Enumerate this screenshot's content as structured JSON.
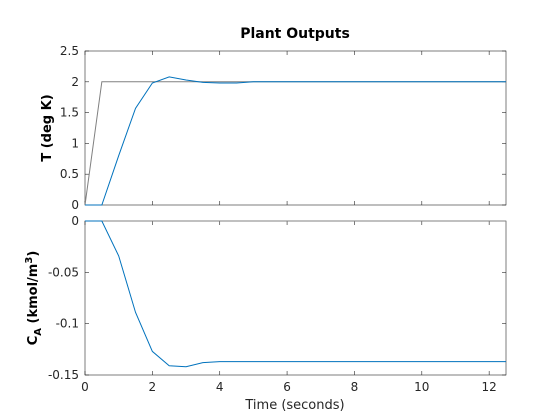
{
  "chart_data": [
    {
      "type": "line",
      "title": "Plant Outputs",
      "ylabel": "T (deg K)",
      "xlabel": "",
      "xlim": [
        0,
        12.5
      ],
      "ylim": [
        0,
        2.5
      ],
      "xticks": [
        "0",
        "2",
        "4",
        "6",
        "8",
        "10",
        "12"
      ],
      "xticks_visible": false,
      "yticks": [
        "0",
        "0.5",
        "1",
        "1.5",
        "2",
        "2.5"
      ],
      "grid": false,
      "series": [
        {
          "color": "#808080",
          "x": [
            0,
            0.5,
            12.5
          ],
          "y": [
            0,
            2,
            2
          ]
        },
        {
          "color": "#0072bd",
          "x": [
            0,
            0.5,
            1.0,
            1.5,
            2.0,
            2.5,
            3.0,
            3.5,
            4.0,
            4.5,
            5.0,
            6.0,
            8.0,
            10.0,
            12.5
          ],
          "y": [
            0,
            0,
            0.8,
            1.57,
            1.98,
            2.08,
            2.03,
            1.99,
            1.98,
            1.98,
            2.0,
            2.0,
            2.0,
            2.0,
            2.0
          ]
        }
      ]
    },
    {
      "type": "line",
      "title": "",
      "ylabel_parts": {
        "main": "C",
        "sub": "A",
        "rest": " (kmol/m",
        "sup": "3",
        "end": ")"
      },
      "xlabel": "Time (seconds)",
      "xlim": [
        0,
        12.5
      ],
      "ylim": [
        -0.15,
        0
      ],
      "xticks": [
        "0",
        "2",
        "4",
        "6",
        "8",
        "10",
        "12"
      ],
      "yticks": [
        "-0.15",
        "-0.1",
        "-0.05",
        "0"
      ],
      "grid": false,
      "series": [
        {
          "color": "#808080",
          "x": [
            0,
            12.5
          ],
          "y": [
            0,
            0
          ]
        },
        {
          "color": "#0072bd",
          "x": [
            0,
            0.5,
            1.0,
            1.5,
            2.0,
            2.5,
            3.0,
            3.5,
            4.0,
            5.0,
            6.0,
            8.0,
            10.0,
            12.5
          ],
          "y": [
            0,
            0,
            -0.034,
            -0.089,
            -0.127,
            -0.141,
            -0.142,
            -0.138,
            -0.137,
            -0.137,
            -0.137,
            -0.137,
            -0.137,
            -0.137
          ]
        }
      ]
    }
  ]
}
